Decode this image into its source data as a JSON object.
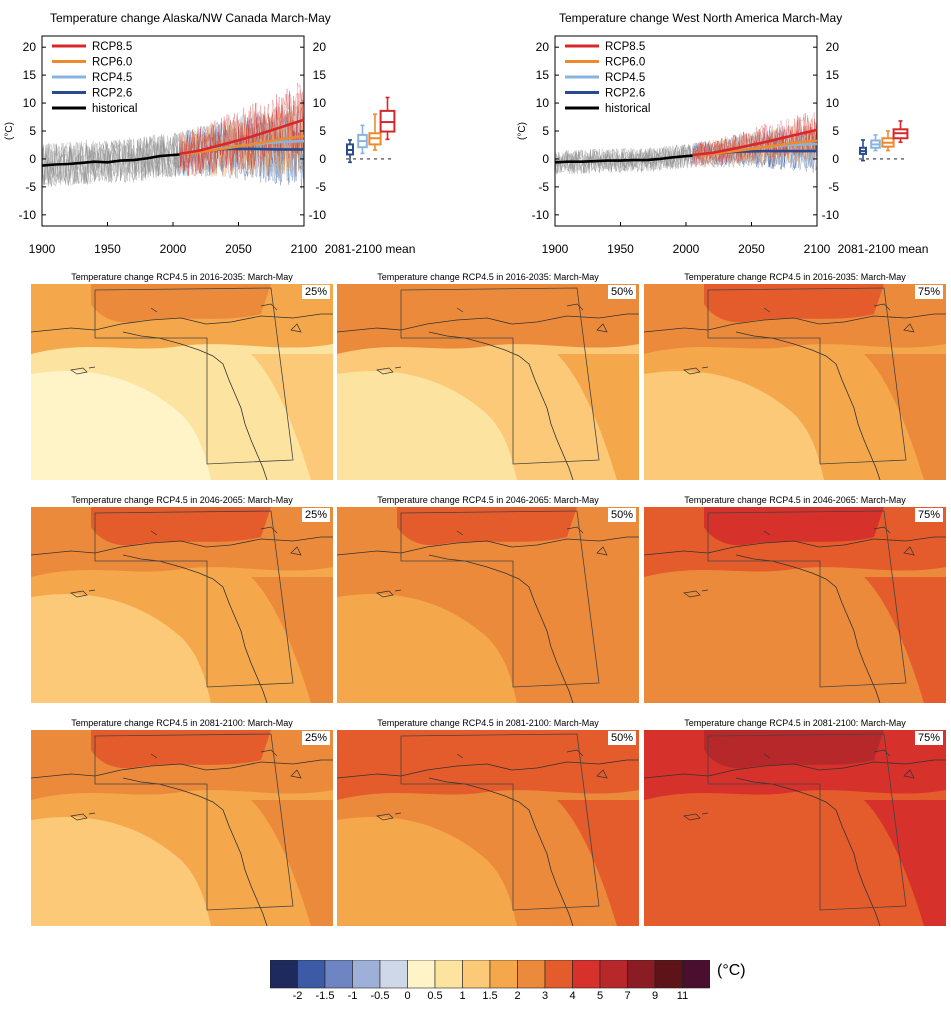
{
  "chart_data": [
    {
      "type": "line",
      "title": "Temperature change Alaska/NW Canada March-May",
      "ylabel": "(°C)",
      "xlim": [
        1900,
        2100
      ],
      "ylim": [
        -12,
        22
      ],
      "x_ticks": [
        "1900",
        "1950",
        "2000",
        "2050",
        "2100"
      ],
      "y_ticks": [
        "20",
        "15",
        "10",
        "5",
        "0",
        "-5",
        "-10"
      ],
      "legend": [
        "RCP8.5",
        "RCP6.0",
        "RCP4.5",
        "RCP2.6",
        "historical"
      ],
      "series": [
        {
          "name": "historical",
          "x": [
            1900,
            1910,
            1920,
            1930,
            1940,
            1950,
            1960,
            1970,
            1980,
            1990,
            2005
          ],
          "y": [
            -1.2,
            -1.0,
            -0.9,
            -0.7,
            -0.5,
            -0.6,
            -0.3,
            -0.2,
            0.1,
            0.5,
            0.8
          ]
        },
        {
          "name": "RCP2.6",
          "x": [
            2005,
            2020,
            2040,
            2060,
            2080,
            2100
          ],
          "y": [
            0.9,
            1.3,
            1.8,
            1.8,
            1.7,
            1.7
          ]
        },
        {
          "name": "RCP4.5",
          "x": [
            2005,
            2020,
            2040,
            2060,
            2080,
            2100
          ],
          "y": [
            0.9,
            1.3,
            2.0,
            2.6,
            3.0,
            3.2
          ]
        },
        {
          "name": "RCP6.0",
          "x": [
            2005,
            2020,
            2040,
            2060,
            2080,
            2100
          ],
          "y": [
            0.9,
            1.2,
            1.9,
            2.6,
            3.4,
            4.1
          ]
        },
        {
          "name": "RCP8.5",
          "x": [
            2005,
            2020,
            2040,
            2060,
            2080,
            2100
          ],
          "y": [
            0.9,
            1.5,
            2.7,
            4.0,
            5.5,
            7.0
          ]
        }
      ],
      "boxes_label": "2081-2100 mean",
      "boxes": [
        {
          "name": "RCP2.6",
          "min": -0.6,
          "q1": 0.8,
          "median": 1.6,
          "q3": 2.6,
          "max": 3.4
        },
        {
          "name": "RCP4.5",
          "min": 1.0,
          "q1": 2.1,
          "median": 3.2,
          "q3": 4.3,
          "max": 6.0
        },
        {
          "name": "RCP6.0",
          "min": 1.6,
          "q1": 2.6,
          "median": 3.7,
          "q3": 4.6,
          "max": 8.0
        },
        {
          "name": "RCP8.5",
          "min": 3.5,
          "q1": 4.9,
          "median": 6.6,
          "q3": 8.6,
          "max": 11.0
        }
      ]
    },
    {
      "type": "line",
      "title": "Temperature change West North America March-May",
      "ylabel": "(°C)",
      "xlim": [
        1900,
        2100
      ],
      "ylim": [
        -12,
        22
      ],
      "x_ticks": [
        "1900",
        "1950",
        "2000",
        "2050",
        "2100"
      ],
      "y_ticks": [
        "20",
        "15",
        "10",
        "5",
        "0",
        "-5",
        "-10"
      ],
      "legend": [
        "RCP8.5",
        "RCP6.0",
        "RCP4.5",
        "RCP2.6",
        "historical"
      ],
      "series": [
        {
          "name": "historical",
          "x": [
            1900,
            1910,
            1920,
            1930,
            1940,
            1950,
            1960,
            1970,
            1980,
            1990,
            2005
          ],
          "y": [
            -0.6,
            -0.5,
            -0.5,
            -0.4,
            -0.3,
            -0.3,
            -0.2,
            -0.2,
            0.0,
            0.3,
            0.6
          ]
        },
        {
          "name": "RCP2.6",
          "x": [
            2005,
            2020,
            2040,
            2060,
            2080,
            2100
          ],
          "y": [
            0.7,
            1.0,
            1.3,
            1.4,
            1.4,
            1.4
          ]
        },
        {
          "name": "RCP4.5",
          "x": [
            2005,
            2020,
            2040,
            2060,
            2080,
            2100
          ],
          "y": [
            0.7,
            1.0,
            1.6,
            2.1,
            2.5,
            2.7
          ]
        },
        {
          "name": "RCP6.0",
          "x": [
            2005,
            2020,
            2040,
            2060,
            2080,
            2100
          ],
          "y": [
            0.7,
            0.9,
            1.5,
            2.1,
            2.8,
            3.3
          ]
        },
        {
          "name": "RCP8.5",
          "x": [
            2005,
            2020,
            2040,
            2060,
            2080,
            2100
          ],
          "y": [
            0.7,
            1.1,
            2.0,
            3.0,
            4.1,
            5.2
          ]
        }
      ],
      "boxes_label": "2081-2100 mean",
      "boxes": [
        {
          "name": "RCP2.6",
          "min": -0.3,
          "q1": 0.9,
          "median": 1.4,
          "q3": 2.0,
          "max": 3.4
        },
        {
          "name": "RCP4.5",
          "min": 1.5,
          "q1": 2.0,
          "median": 2.6,
          "q3": 3.3,
          "max": 4.3
        },
        {
          "name": "RCP6.0",
          "min": 1.5,
          "q1": 2.2,
          "median": 2.9,
          "q3": 3.7,
          "max": 5.0
        },
        {
          "name": "RCP8.5",
          "min": 3.0,
          "q1": 3.7,
          "median": 4.6,
          "q3": 5.3,
          "max": 6.8
        }
      ]
    },
    {
      "type": "heatmap",
      "panels": [
        {
          "title": "Temperature change RCP4.5 in 2016-2035: March-May",
          "percentile": "25%",
          "level": 0.9
        },
        {
          "title": "Temperature change RCP4.5 in 2016-2035: March-May",
          "percentile": "50%",
          "level": 1.2
        },
        {
          "title": "Temperature change RCP4.5 in 2016-2035: March-May",
          "percentile": "75%",
          "level": 1.8
        },
        {
          "title": "Temperature change RCP4.5 in 2046-2065: March-May",
          "percentile": "25%",
          "level": 1.6
        },
        {
          "title": "Temperature change RCP4.5 in 2046-2065: March-May",
          "percentile": "50%",
          "level": 2.1
        },
        {
          "title": "Temperature change RCP4.5 in 2046-2065: March-May",
          "percentile": "75%",
          "level": 2.8
        },
        {
          "title": "Temperature change RCP4.5 in 2081-2100: March-May",
          "percentile": "25%",
          "level": 1.9
        },
        {
          "title": "Temperature change RCP4.5 in 2081-2100: March-May",
          "percentile": "50%",
          "level": 2.5
        },
        {
          "title": "Temperature change RCP4.5 in 2081-2100: March-May",
          "percentile": "75%",
          "level": 3.6
        }
      ],
      "colorbar": {
        "labels": [
          "-2",
          "-1.5",
          "-1",
          "-0.5",
          "0",
          "0.5",
          "1",
          "1.5",
          "2",
          "3",
          "4",
          "5",
          "7",
          "9",
          "11"
        ],
        "unit": "(°C)",
        "colors": [
          "#1f2a5c",
          "#3c5aa6",
          "#6f84c2",
          "#9fb0d8",
          "#cfd8e8",
          "#fff4c8",
          "#fde3a0",
          "#fbc977",
          "#f4a84b",
          "#ec8a3c",
          "#e45c2c",
          "#d6312a",
          "#b7282b",
          "#8c1c24",
          "#5d1318",
          "#4a0f2e"
        ]
      }
    }
  ],
  "colors": {
    "rcp85": "#d7272b",
    "rcp60": "#ee8a2e",
    "rcp45": "#86b6e0",
    "rcp26": "#2a4a8f",
    "historical": "#000000",
    "hist_spread": "#8a8a8a"
  }
}
